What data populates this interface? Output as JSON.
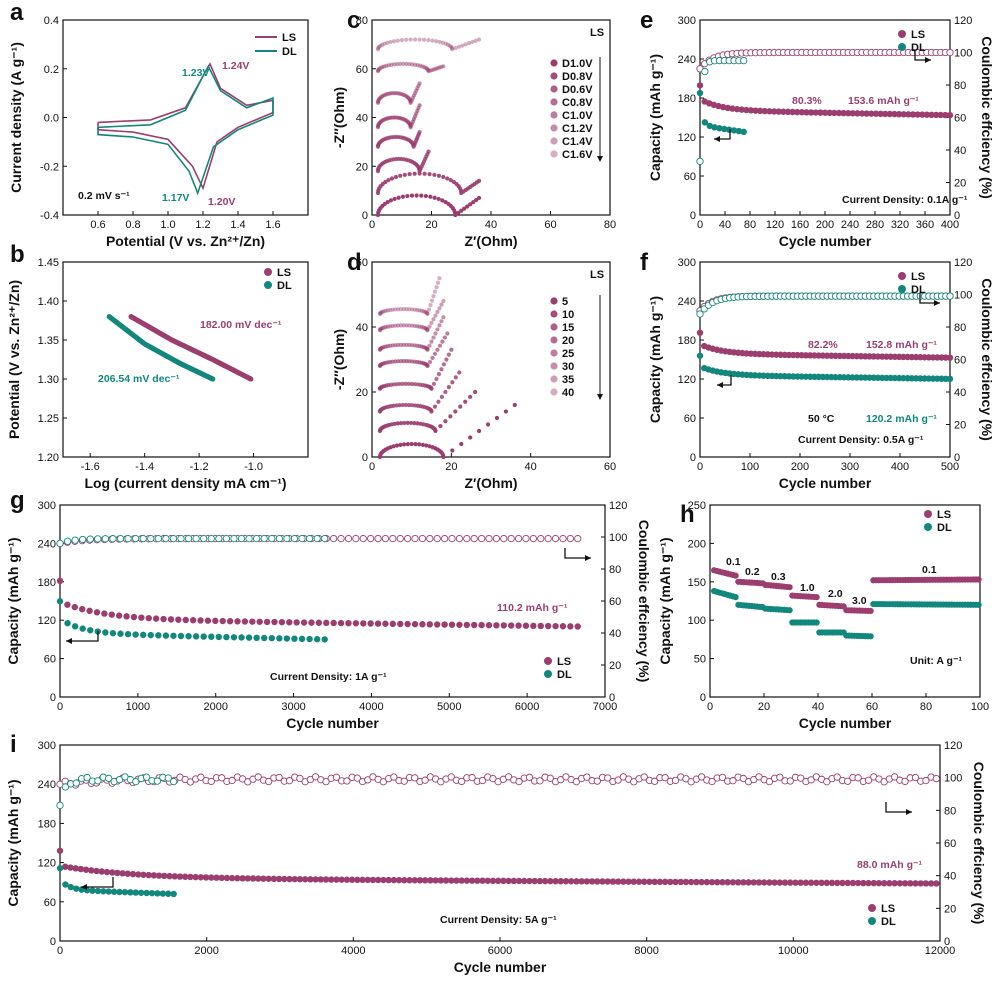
{
  "colors": {
    "LS": "#9b3e6f",
    "DL": "#12877d",
    "axis": "#111111"
  },
  "chart_data": [
    {
      "id": "a",
      "type": "line",
      "xlabel": "Potential (V vs. Zn²⁺/Zn)",
      "ylabel": "Current density (A g⁻¹)",
      "xlim": [
        0.4,
        1.8
      ],
      "ylim": [
        -0.4,
        0.4
      ],
      "xticks": [
        "0.6",
        "0.8",
        "1.0",
        "1.2",
        "1.4",
        "1.6"
      ],
      "yticks": [
        "-0.4",
        "-0.2",
        "0.0",
        "0.2",
        "0.4"
      ],
      "legend": [
        "LS",
        "DL"
      ],
      "annotations": {
        "ls_ox": "1.24V",
        "dl_ox": "1.23V",
        "dl_red": "1.17V",
        "ls_red": "1.20V",
        "scan": "0.2 mV s⁻¹"
      },
      "series": [
        {
          "name": "LS",
          "upper": [
            [
              0.6,
              -0.02
            ],
            [
              0.9,
              -0.01
            ],
            [
              1.1,
              0.04
            ],
            [
              1.2,
              0.17
            ],
            [
              1.24,
              0.22
            ],
            [
              1.3,
              0.12
            ],
            [
              1.45,
              0.05
            ],
            [
              1.6,
              0.07
            ]
          ],
          "lower": [
            [
              1.6,
              0.02
            ],
            [
              1.4,
              -0.04
            ],
            [
              1.28,
              -0.1
            ],
            [
              1.2,
              -0.29
            ],
            [
              1.14,
              -0.2
            ],
            [
              1.0,
              -0.09
            ],
            [
              0.8,
              -0.06
            ],
            [
              0.6,
              -0.05
            ]
          ]
        },
        {
          "name": "DL",
          "upper": [
            [
              0.6,
              -0.04
            ],
            [
              0.9,
              -0.03
            ],
            [
              1.1,
              0.03
            ],
            [
              1.2,
              0.17
            ],
            [
              1.23,
              0.21
            ],
            [
              1.3,
              0.11
            ],
            [
              1.45,
              0.04
            ],
            [
              1.6,
              0.08
            ]
          ],
          "lower": [
            [
              1.6,
              0.01
            ],
            [
              1.4,
              -0.05
            ],
            [
              1.26,
              -0.12
            ],
            [
              1.17,
              -0.31
            ],
            [
              1.12,
              -0.22
            ],
            [
              1.0,
              -0.11
            ],
            [
              0.8,
              -0.08
            ],
            [
              0.6,
              -0.07
            ]
          ]
        }
      ]
    },
    {
      "id": "b",
      "type": "scatter",
      "xlabel": "Log (current density mA cm⁻¹)",
      "ylabel": "Potential (V vs. Zn²⁺/Zn)",
      "xlim": [
        -1.7,
        -0.8
      ],
      "ylim": [
        1.2,
        1.45
      ],
      "xticks": [
        "-1.6",
        "-1.4",
        "-1.2",
        "-1.0"
      ],
      "yticks": [
        "1.20",
        "1.25",
        "1.30",
        "1.35",
        "1.40",
        "1.45"
      ],
      "legend": [
        "LS",
        "DL"
      ],
      "annotations": {
        "ls_slope": "182.00 mV dec⁻¹",
        "dl_slope": "206.54 mV dec⁻¹"
      },
      "series": [
        {
          "name": "LS",
          "x": [
            -1.45,
            -1.3,
            -1.15,
            -1.01
          ],
          "y": [
            1.38,
            1.35,
            1.325,
            1.3
          ]
        },
        {
          "name": "DL",
          "x": [
            -1.53,
            -1.4,
            -1.27,
            -1.15
          ],
          "y": [
            1.38,
            1.345,
            1.32,
            1.3
          ]
        }
      ]
    },
    {
      "id": "c",
      "type": "scatter",
      "xlabel": "Z′(Ohm)",
      "ylabel": "-Z″(Ohm)",
      "tag": "LS",
      "xlim": [
        0,
        80
      ],
      "ylim": [
        0,
        80
      ],
      "xticks": [
        "0",
        "20",
        "40",
        "60",
        "80"
      ],
      "yticks": [
        "0",
        "20",
        "40",
        "60",
        "80"
      ],
      "legend": [
        "D1.0V",
        "D0.8V",
        "D0.6V",
        "C0.8V",
        "C1.0V",
        "C1.2V",
        "C1.4V",
        "C1.6V"
      ],
      "series": [
        {
          "name": "D1.0V",
          "offset": 0,
          "semi": [
            2,
            28,
            8
          ],
          "tail": [
            [
              36,
              7
            ]
          ]
        },
        {
          "name": "D0.8V",
          "offset": 9,
          "semi": [
            2,
            30,
            8
          ],
          "tail": [
            [
              36,
              14
            ]
          ]
        },
        {
          "name": "D0.6V",
          "offset": 18,
          "semi": [
            2,
            16,
            5
          ],
          "tail": [
            [
              19,
              26
            ]
          ]
        },
        {
          "name": "C0.8V",
          "offset": 28,
          "semi": [
            2,
            14,
            4
          ],
          "tail": [
            [
              16,
              34
            ]
          ]
        },
        {
          "name": "C1.0V",
          "offset": 36,
          "semi": [
            2,
            13,
            4
          ],
          "tail": [
            [
              16,
              45
            ]
          ]
        },
        {
          "name": "C1.2V",
          "offset": 46,
          "semi": [
            2,
            13,
            4
          ],
          "tail": [
            [
              16,
              54
            ]
          ]
        },
        {
          "name": "C1.4V",
          "offset": 59,
          "semi": [
            2,
            19,
            3
          ],
          "tail": [
            [
              24,
              61
            ]
          ]
        },
        {
          "name": "C1.6V",
          "offset": 68,
          "semi": [
            2,
            27,
            4
          ],
          "tail": [
            [
              36,
              72
            ]
          ]
        }
      ]
    },
    {
      "id": "d",
      "type": "scatter",
      "xlabel": "Z′(Ohm)",
      "ylabel": "-Z″(Ohm)",
      "tag": "LS",
      "xlim": [
        0,
        60
      ],
      "ylim": [
        0,
        60
      ],
      "xticks": [
        "0",
        "20",
        "40",
        "60"
      ],
      "yticks": [
        "0",
        "20",
        "40",
        "60"
      ],
      "legend": [
        "5",
        "10",
        "15",
        "20",
        "25",
        "30",
        "35",
        "40"
      ],
      "series": [
        {
          "name": "5",
          "offset": 0,
          "semi": [
            2,
            18,
            4
          ],
          "tail": [
            [
              36,
              16
            ]
          ]
        },
        {
          "name": "10",
          "offset": 8,
          "semi": [
            2,
            16,
            2.5
          ],
          "tail": [
            [
              26,
              20
            ]
          ]
        },
        {
          "name": "15",
          "offset": 14,
          "semi": [
            2,
            15,
            2
          ],
          "tail": [
            [
              22,
              26
            ]
          ]
        },
        {
          "name": "20",
          "offset": 21,
          "semi": [
            2,
            15,
            1.5
          ],
          "tail": [
            [
              20,
              33
            ]
          ]
        },
        {
          "name": "25",
          "offset": 28,
          "semi": [
            2,
            14,
            1.5
          ],
          "tail": [
            [
              19,
              38
            ]
          ]
        },
        {
          "name": "30",
          "offset": 33,
          "semi": [
            2,
            14,
            1.5
          ],
          "tail": [
            [
              18,
              43
            ]
          ]
        },
        {
          "name": "35",
          "offset": 39,
          "semi": [
            2,
            14,
            1.5
          ],
          "tail": [
            [
              18,
              48
            ]
          ]
        },
        {
          "name": "40",
          "offset": 44,
          "semi": [
            2,
            14,
            1.5
          ],
          "tail": [
            [
              17,
              55
            ]
          ]
        }
      ]
    },
    {
      "id": "e",
      "type": "scatter",
      "xlabel": "Cycle number",
      "ylabel": "Capacity (mAh g⁻¹)",
      "y2label": "Coulombic effciency (%)",
      "xlim": [
        0,
        400
      ],
      "ylim": [
        0,
        300
      ],
      "y2lim": [
        0,
        120
      ],
      "xticks": [
        "0",
        "40",
        "80",
        "120",
        "160",
        "200",
        "240",
        "280",
        "320",
        "360",
        "400"
      ],
      "yticks": [
        "0",
        "60",
        "120",
        "180",
        "240",
        "300"
      ],
      "y2ticks": [
        "0",
        "20",
        "40",
        "60",
        "80",
        "100",
        "120"
      ],
      "legend": [
        "LS",
        "DL"
      ],
      "annotations": {
        "retention": "80.3%",
        "final": "153.6 mAh g⁻¹",
        "current": "Current Density: 0.1A g⁻¹"
      },
      "series": [
        {
          "name": "LS",
          "capacity": {
            "start": 192,
            "end": 153.6,
            "cycles": 400
          },
          "ce": {
            "start": 90,
            "end": 100
          }
        },
        {
          "name": "DL",
          "capacity": {
            "start": 178,
            "end": 128,
            "cycles": 70
          },
          "ce": {
            "start": 33,
            "end": 95
          }
        }
      ]
    },
    {
      "id": "f",
      "type": "scatter",
      "xlabel": "Cycle number",
      "ylabel": "Capacity (mAh g⁻¹)",
      "y2label": "Coulombic effciency (%)",
      "xlim": [
        0,
        500
      ],
      "ylim": [
        0,
        300
      ],
      "y2lim": [
        0,
        120
      ],
      "xticks": [
        "0",
        "100",
        "200",
        "300",
        "400",
        "500"
      ],
      "yticks": [
        "0",
        "60",
        "120",
        "180",
        "240",
        "300"
      ],
      "y2ticks": [
        "0",
        "20",
        "40",
        "60",
        "80",
        "100",
        "120"
      ],
      "legend": [
        "LS",
        "DL"
      ],
      "annotations": {
        "retention": "82.2%",
        "ls_final": "152.8 mAh g⁻¹",
        "dl_final": "120.2 mAh g⁻¹",
        "temp": "50 °C",
        "current": "Current Density: 0.5A g⁻¹"
      },
      "series": [
        {
          "name": "LS",
          "capacity": {
            "start": 185,
            "end": 152.8,
            "cycles": 500
          },
          "ce": {
            "start": 90,
            "end": 99
          }
        },
        {
          "name": "DL",
          "capacity": {
            "start": 150,
            "end": 120.2,
            "cycles": 500
          },
          "ce": {
            "start": 88,
            "end": 99
          }
        }
      ]
    },
    {
      "id": "g",
      "type": "scatter",
      "xlabel": "Cycle number",
      "ylabel": "Capacity (mAh g⁻¹)",
      "y2label": "Coulombic effciency (%)",
      "xlim": [
        0,
        7000
      ],
      "ylim": [
        0,
        300
      ],
      "y2lim": [
        0,
        120
      ],
      "xticks": [
        "0",
        "1000",
        "2000",
        "3000",
        "4000",
        "5000",
        "6000",
        "7000"
      ],
      "yticks": [
        "0",
        "60",
        "120",
        "180",
        "240",
        "300"
      ],
      "y2ticks": [
        "0",
        "20",
        "40",
        "60",
        "80",
        "100",
        "120"
      ],
      "legend": [
        "LS",
        "DL"
      ],
      "annotations": {
        "final": "110.2 mAh g⁻¹",
        "current": "Current Density: 1A g⁻¹"
      },
      "series": [
        {
          "name": "LS",
          "capacity": {
            "start": 170,
            "end": 110.2,
            "cycles": 6650
          },
          "ce": {
            "start": 96,
            "end": 99
          }
        },
        {
          "name": "DL",
          "capacity": {
            "start": 140,
            "end": 90,
            "cycles": 3400
          },
          "ce": {
            "start": 96,
            "end": 99
          }
        }
      ]
    },
    {
      "id": "h",
      "type": "scatter",
      "xlabel": "Cycle number",
      "ylabel": "Capacity (mAh g⁻¹)",
      "xlim": [
        0,
        100
      ],
      "ylim": [
        0,
        250
      ],
      "xticks": [
        "0",
        "20",
        "40",
        "60",
        "80",
        "100"
      ],
      "yticks": [
        "0",
        "50",
        "100",
        "150",
        "200",
        "250"
      ],
      "legend": [
        "LS",
        "DL"
      ],
      "rates": [
        "0.1",
        "0.2",
        "0.3",
        "1.0",
        "2.0",
        "3.0",
        "0.1"
      ],
      "unit": "Unit: A g⁻¹",
      "series": [
        {
          "name": "LS",
          "steps": [
            [
              1,
              10,
              165,
              158
            ],
            [
              10,
              20,
              150,
              148
            ],
            [
              20,
              30,
              146,
              143
            ],
            [
              30,
              40,
              132,
              130
            ],
            [
              40,
              50,
              120,
              118
            ],
            [
              50,
              60,
              113,
              112
            ],
            [
              60,
              100,
              152,
              153
            ]
          ]
        },
        {
          "name": "DL",
          "steps": [
            [
              1,
              10,
              138,
              130
            ],
            [
              10,
              20,
              120,
              117
            ],
            [
              20,
              30,
              115,
              113
            ],
            [
              30,
              40,
              97,
              97
            ],
            [
              40,
              50,
              84,
              84
            ],
            [
              50,
              60,
              80,
              79
            ],
            [
              60,
              100,
              121,
              120
            ]
          ]
        }
      ]
    },
    {
      "id": "i",
      "type": "scatter",
      "xlabel": "Cycle number",
      "ylabel": "Capacity (mAh g⁻¹)",
      "y2label": "Coulombic effciency (%)",
      "xlim": [
        0,
        12000
      ],
      "ylim": [
        0,
        300
      ],
      "y2lim": [
        0,
        120
      ],
      "xticks": [
        "0",
        "2000",
        "4000",
        "6000",
        "8000",
        "10000",
        "12000"
      ],
      "yticks": [
        "0",
        "60",
        "120",
        "180",
        "240",
        "300"
      ],
      "y2ticks": [
        "0",
        "20",
        "40",
        "60",
        "80",
        "100",
        "120"
      ],
      "legend": [
        "LS",
        "DL"
      ],
      "annotations": {
        "final": "88.0 mAh g⁻¹",
        "current": "Current Density: 5A g⁻¹"
      },
      "series": [
        {
          "name": "LS",
          "capacity": {
            "start": 130,
            "end": 88.0,
            "cycles": 11950
          },
          "ce": {
            "start": 96,
            "end": 99
          }
        },
        {
          "name": "DL",
          "capacity": {
            "start": 105,
            "end": 72,
            "cycles": 1550
          },
          "ce": {
            "start": 83,
            "end": 99
          }
        }
      ]
    }
  ]
}
